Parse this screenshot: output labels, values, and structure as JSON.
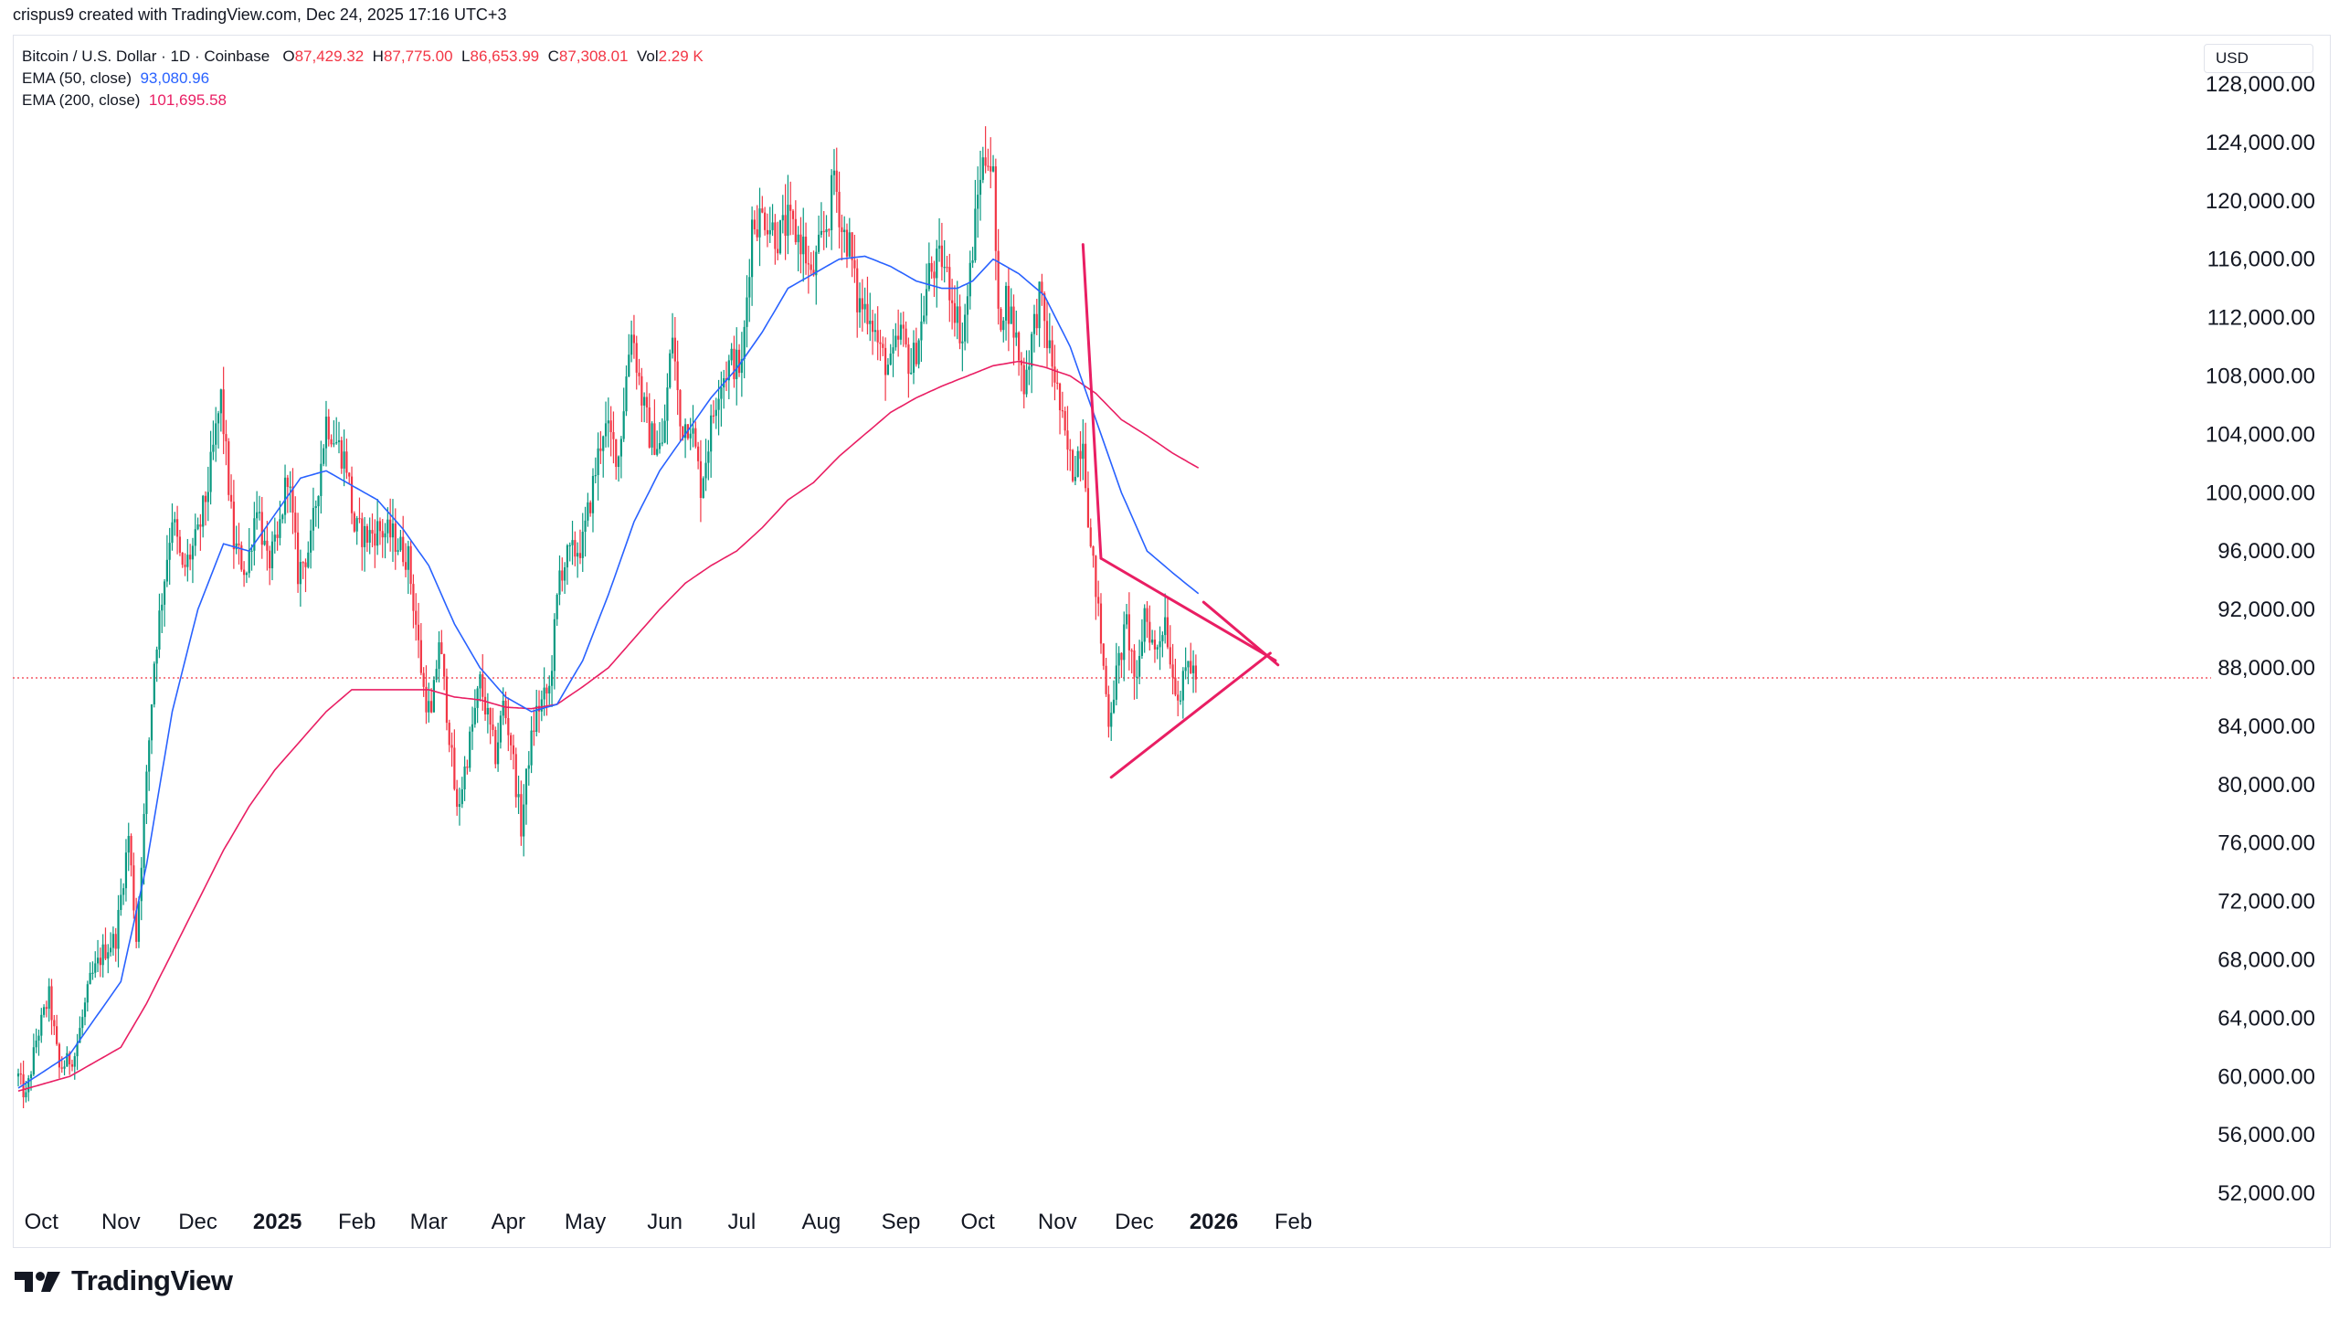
{
  "header": {
    "author_line": "crispus9 created with TradingView.com, Dec 24, 2025 17:16 UTC+3"
  },
  "legend": {
    "symbol": "Bitcoin / U.S. Dollar · 1D · Coinbase",
    "o_label": "O",
    "o_value": "87,429.32",
    "h_label": "H",
    "h_value": "87,775.00",
    "l_label": "L",
    "l_value": "86,653.99",
    "c_label": "C",
    "c_value": "87,308.01",
    "vol_label": "Vol",
    "vol_value": "2.29 K",
    "ema50_label": "EMA (50, close)",
    "ema50_value": "93,080.96",
    "ema200_label": "EMA (200, close)",
    "ema200_value": "101,695.58"
  },
  "currency_button": "USD",
  "brand": {
    "name": "TradingView"
  },
  "colors": {
    "up": "#089981",
    "down": "#f23645",
    "ema50": "#2962ff",
    "ema200": "#e91e63",
    "pattern": "#e91e63",
    "price_line": "#f23645"
  },
  "chart_data": {
    "type": "candlestick",
    "title": "Bitcoin / U.S. Dollar · 1D · Coinbase",
    "ylim": [
      50000,
      130000
    ],
    "y_ticks": [
      "52,000.00",
      "56,000.00",
      "60,000.00",
      "64,000.00",
      "68,000.00",
      "72,000.00",
      "76,000.00",
      "80,000.00",
      "84,000.00",
      "88,000.00",
      "92,000.00",
      "96,000.00",
      "100,000.00",
      "104,000.00",
      "108,000.00",
      "112,000.00",
      "116,000.00",
      "120,000.00",
      "124,000.00",
      "128,000.00"
    ],
    "x_labels": [
      {
        "label": "Oct",
        "day": 9,
        "bold": false
      },
      {
        "label": "Nov",
        "day": 40,
        "bold": false
      },
      {
        "label": "Dec",
        "day": 70,
        "bold": false
      },
      {
        "label": "2025",
        "day": 101,
        "bold": true
      },
      {
        "label": "Feb",
        "day": 132,
        "bold": false
      },
      {
        "label": "Mar",
        "day": 160,
        "bold": false
      },
      {
        "label": "Apr",
        "day": 191,
        "bold": false
      },
      {
        "label": "May",
        "day": 221,
        "bold": false
      },
      {
        "label": "Jun",
        "day": 252,
        "bold": false
      },
      {
        "label": "Jul",
        "day": 282,
        "bold": false
      },
      {
        "label": "Aug",
        "day": 313,
        "bold": false
      },
      {
        "label": "Sep",
        "day": 344,
        "bold": false
      },
      {
        "label": "Oct",
        "day": 374,
        "bold": false
      },
      {
        "label": "Nov",
        "day": 405,
        "bold": false
      },
      {
        "label": "Dec",
        "day": 435,
        "bold": false
      },
      {
        "label": "2026",
        "day": 466,
        "bold": true
      },
      {
        "label": "Feb",
        "day": 497,
        "bold": false
      }
    ],
    "current_price": 87308.01,
    "price_anchors": [
      [
        0,
        60000
      ],
      [
        3,
        58500
      ],
      [
        7,
        62500
      ],
      [
        12,
        65500
      ],
      [
        16,
        60500
      ],
      [
        22,
        61500
      ],
      [
        28,
        66500
      ],
      [
        33,
        68500
      ],
      [
        38,
        69500
      ],
      [
        43,
        76500
      ],
      [
        46,
        69500
      ],
      [
        53,
        88500
      ],
      [
        55,
        91500
      ],
      [
        60,
        98500
      ],
      [
        64,
        94500
      ],
      [
        70,
        97000
      ],
      [
        74,
        100500
      ],
      [
        79,
        106500
      ],
      [
        84,
        96500
      ],
      [
        89,
        94500
      ],
      [
        93,
        99500
      ],
      [
        97,
        95000
      ],
      [
        101,
        96500
      ],
      [
        105,
        101500
      ],
      [
        109,
        94500
      ],
      [
        114,
        96500
      ],
      [
        120,
        105000
      ],
      [
        124,
        103500
      ],
      [
        128,
        102000
      ],
      [
        131,
        97500
      ],
      [
        136,
        97000
      ],
      [
        140,
        97500
      ],
      [
        146,
        97000
      ],
      [
        152,
        95500
      ],
      [
        158,
        86500
      ],
      [
        161,
        84500
      ],
      [
        164,
        90000
      ],
      [
        168,
        83500
      ],
      [
        171,
        78000
      ],
      [
        177,
        84000
      ],
      [
        180,
        87000
      ],
      [
        183,
        84500
      ],
      [
        186,
        82000
      ],
      [
        189,
        85500
      ],
      [
        192,
        83000
      ],
      [
        196,
        77000
      ],
      [
        199,
        82000
      ],
      [
        202,
        85000
      ],
      [
        207,
        86500
      ],
      [
        211,
        94500
      ],
      [
        214,
        95500
      ],
      [
        220,
        96500
      ],
      [
        225,
        101500
      ],
      [
        228,
        104500
      ],
      [
        230,
        104000
      ],
      [
        234,
        102500
      ],
      [
        239,
        111500
      ],
      [
        243,
        106500
      ],
      [
        246,
        104000
      ],
      [
        251,
        103000
      ],
      [
        255,
        111000
      ],
      [
        258,
        104500
      ],
      [
        262,
        105000
      ],
      [
        266,
        100500
      ],
      [
        269,
        103500
      ],
      [
        273,
        107500
      ],
      [
        278,
        109000
      ],
      [
        282,
        108500
      ],
      [
        286,
        118500
      ],
      [
        291,
        119000
      ],
      [
        296,
        117500
      ],
      [
        300,
        118500
      ],
      [
        306,
        117000
      ],
      [
        309,
        114500
      ],
      [
        312,
        116500
      ],
      [
        316,
        119000
      ],
      [
        318,
        122000
      ],
      [
        321,
        118000
      ],
      [
        324,
        117000
      ],
      [
        327,
        113000
      ],
      [
        332,
        112500
      ],
      [
        336,
        109500
      ],
      [
        340,
        108500
      ],
      [
        344,
        111000
      ],
      [
        348,
        108500
      ],
      [
        352,
        111500
      ],
      [
        355,
        115000
      ],
      [
        360,
        116000
      ],
      [
        364,
        113500
      ],
      [
        368,
        110500
      ],
      [
        371,
        115000
      ],
      [
        375,
        122000
      ],
      [
        378,
        123500
      ],
      [
        380,
        121500
      ],
      [
        382,
        111500
      ],
      [
        385,
        113500
      ],
      [
        389,
        110500
      ],
      [
        392,
        107500
      ],
      [
        395,
        110500
      ],
      [
        398,
        113500
      ],
      [
        401,
        110500
      ],
      [
        404,
        108000
      ],
      [
        408,
        103500
      ],
      [
        411,
        101500
      ],
      [
        415,
        104000
      ],
      [
        418,
        96000
      ],
      [
        420,
        93500
      ],
      [
        423,
        88000
      ],
      [
        425,
        84500
      ],
      [
        428,
        87500
      ],
      [
        432,
        91000
      ],
      [
        436,
        86500
      ],
      [
        439,
        92000
      ],
      [
        443,
        89000
      ],
      [
        447,
        91500
      ],
      [
        450,
        87500
      ],
      [
        453,
        86000
      ],
      [
        456,
        88500
      ],
      [
        459,
        87400
      ]
    ],
    "ema50_anchors": [
      [
        0,
        59200
      ],
      [
        20,
        61500
      ],
      [
        40,
        66500
      ],
      [
        50,
        74500
      ],
      [
        60,
        85000
      ],
      [
        70,
        92000
      ],
      [
        80,
        96500
      ],
      [
        90,
        96000
      ],
      [
        100,
        98500
      ],
      [
        110,
        101000
      ],
      [
        120,
        101500
      ],
      [
        130,
        100500
      ],
      [
        140,
        99500
      ],
      [
        150,
        97500
      ],
      [
        160,
        95000
      ],
      [
        170,
        91000
      ],
      [
        180,
        88000
      ],
      [
        190,
        86000
      ],
      [
        200,
        85000
      ],
      [
        210,
        85500
      ],
      [
        220,
        88500
      ],
      [
        230,
        93000
      ],
      [
        240,
        98000
      ],
      [
        250,
        101500
      ],
      [
        260,
        104000
      ],
      [
        270,
        106500
      ],
      [
        280,
        108500
      ],
      [
        290,
        111000
      ],
      [
        300,
        114000
      ],
      [
        310,
        115000
      ],
      [
        320,
        116000
      ],
      [
        330,
        116200
      ],
      [
        340,
        115500
      ],
      [
        350,
        114500
      ],
      [
        360,
        114000
      ],
      [
        366,
        114000
      ],
      [
        372,
        114500
      ],
      [
        380,
        116000
      ],
      [
        390,
        115000
      ],
      [
        400,
        113500
      ],
      [
        410,
        110000
      ],
      [
        420,
        105000
      ],
      [
        430,
        100000
      ],
      [
        440,
        96000
      ],
      [
        450,
        94500
      ],
      [
        460,
        93080
      ]
    ],
    "ema200_anchors": [
      [
        0,
        59000
      ],
      [
        20,
        60000
      ],
      [
        40,
        62000
      ],
      [
        50,
        65000
      ],
      [
        60,
        68500
      ],
      [
        70,
        72000
      ],
      [
        80,
        75500
      ],
      [
        90,
        78500
      ],
      [
        100,
        81000
      ],
      [
        110,
        83000
      ],
      [
        120,
        85000
      ],
      [
        130,
        86500
      ],
      [
        140,
        86500
      ],
      [
        150,
        86500
      ],
      [
        160,
        86500
      ],
      [
        170,
        86000
      ],
      [
        180,
        85800
      ],
      [
        190,
        85300
      ],
      [
        200,
        85200
      ],
      [
        210,
        85500
      ],
      [
        220,
        86700
      ],
      [
        230,
        88000
      ],
      [
        240,
        90000
      ],
      [
        250,
        92000
      ],
      [
        260,
        93800
      ],
      [
        270,
        95000
      ],
      [
        280,
        96000
      ],
      [
        290,
        97600
      ],
      [
        300,
        99500
      ],
      [
        310,
        100700
      ],
      [
        320,
        102500
      ],
      [
        330,
        104000
      ],
      [
        340,
        105500
      ],
      [
        350,
        106500
      ],
      [
        360,
        107300
      ],
      [
        370,
        108000
      ],
      [
        380,
        108700
      ],
      [
        390,
        109000
      ],
      [
        400,
        108600
      ],
      [
        410,
        108000
      ],
      [
        420,
        106800
      ],
      [
        430,
        105000
      ],
      [
        440,
        103900
      ],
      [
        450,
        102700
      ],
      [
        460,
        101695
      ]
    ],
    "drawings": [
      {
        "name": "flagpole-line",
        "points": [
          [
            415,
            117000
          ],
          [
            422,
            95500
          ]
        ]
      },
      {
        "name": "triangle-upper-line",
        "points": [
          [
            422,
            95500
          ],
          [
            490,
            88500
          ]
        ]
      },
      {
        "name": "triangle-lower-line",
        "points": [
          [
            426,
            80500
          ],
          [
            488,
            89000
          ]
        ]
      },
      {
        "name": "triangle-apex-line",
        "points": [
          [
            462,
            92500
          ],
          [
            491,
            88200
          ]
        ]
      }
    ]
  }
}
